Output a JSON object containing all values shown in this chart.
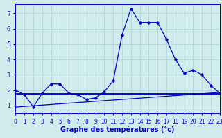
{
  "title": "Graphe des températures (°c)",
  "x_hours": [
    0,
    1,
    2,
    3,
    4,
    5,
    6,
    7,
    8,
    9,
    10,
    11,
    12,
    13,
    14,
    15,
    16,
    17,
    18,
    19,
    20,
    21,
    22,
    23
  ],
  "temp_line": [
    2.0,
    1.7,
    0.9,
    1.8,
    2.4,
    2.4,
    1.8,
    1.7,
    1.4,
    1.5,
    1.9,
    2.6,
    5.6,
    7.3,
    6.4,
    6.4,
    6.4,
    5.3,
    4.0,
    3.1,
    3.3,
    3.0,
    2.3,
    1.8
  ],
  "flat_line_y": 1.75,
  "diag_line_start_y": 0.9,
  "diag_line_end_y": 1.85,
  "line_color": "#0000cc",
  "bg_color": "#d0ecec",
  "grid_color": "#b0d4d4",
  "xlim": [
    0,
    23
  ],
  "ylim": [
    0.5,
    7.6
  ],
  "yticks": [
    1,
    2,
    3,
    4,
    5,
    6,
    7
  ],
  "marker": "D",
  "markersize": 1.8,
  "linewidth": 0.9,
  "xlabel_fontsize": 7,
  "tick_fontsize": 5.5
}
